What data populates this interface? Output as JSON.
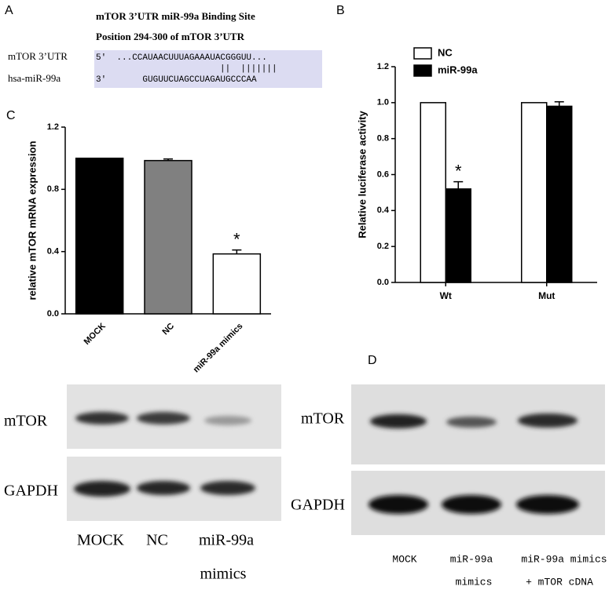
{
  "panel_a": {
    "label": "A",
    "title": "mTOR 3’UTR miR-99a Binding Site",
    "subtitle": "Position 294-300 of mTOR 3’UTR",
    "rows": [
      {
        "name": "mTOR 3’UTR",
        "sequence": "5'  ...CCAUAACUUUAGAAAUACGGGUU..."
      },
      {
        "name": "hsa-miR-99a",
        "sequence": "3'       GUGUUCUAGCCUAGAUGCCCAA"
      }
    ],
    "pairing": "||  |||||||"
  },
  "chart_data": [
    {
      "type": "bar",
      "panel_label": "B",
      "y_label": "Relative luciferase activity",
      "categories": [
        "Wt",
        "Mut"
      ],
      "series": [
        {
          "name": "NC",
          "color": "#ffffff",
          "values": [
            1.0,
            1.0
          ]
        },
        {
          "name": "miR-99a",
          "color": "#000000",
          "values": [
            0.52,
            0.98
          ],
          "errors": [
            0.04,
            0.025
          ]
        }
      ],
      "ylim": [
        0,
        1.2
      ],
      "yticks": [
        {
          "value": 0,
          "label": "0.0"
        },
        0.2,
        0.4,
        0.6,
        0.8,
        {
          "value": 1,
          "label": "1.0"
        },
        1.2
      ],
      "annotation": "*",
      "legend": "top-left"
    },
    {
      "type": "bar",
      "panel_label": "C",
      "y_label": "relative mTOR mRNA expression",
      "categories": [
        "MOCK",
        "NC",
        "miR-99a mimics"
      ],
      "series": [
        {
          "values": [
            1.0,
            0.985,
            0.385
          ],
          "colors": [
            "#000000",
            "#808080",
            "#ffffff"
          ],
          "errors": [
            null,
            0.01,
            0.025
          ]
        }
      ],
      "ylim": [
        0,
        1.2
      ],
      "yticks": [
        {
          "value": 0,
          "label": "0.0"
        },
        0.4,
        0.8,
        1.2
      ],
      "annotation": "*"
    }
  ],
  "blot_c": {
    "rows": [
      "mTOR",
      "GAPDH"
    ],
    "lanes": [
      "MOCK",
      "NC",
      "miR-99a",
      "mimics"
    ]
  },
  "blot_d": {
    "label": "D",
    "rows": [
      "mTOR",
      "GAPDH"
    ],
    "lanes": [
      "MOCK",
      "miR-99a",
      "mimics",
      "miR-99a mimics",
      "+ mTOR cDNA"
    ]
  }
}
